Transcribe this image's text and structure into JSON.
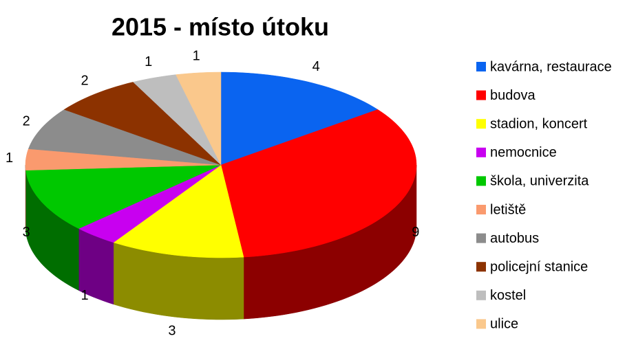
{
  "chart_data": {
    "type": "pie3d",
    "title": "2015 - místo útoku",
    "categories": [
      "kavárna, restaurace",
      "budova",
      "stadion, koncert",
      "nemocnice",
      "škola, univerzita",
      "letiště",
      "autobus",
      "policejní stanice",
      "kostel",
      "ulice"
    ],
    "values": [
      4,
      9,
      3,
      1,
      3,
      1,
      2,
      2,
      1,
      1
    ],
    "colors": [
      "#0a64f0",
      "#ff0000",
      "#ffff00",
      "#c800f0",
      "#00c800",
      "#fa9a6e",
      "#8c8c8c",
      "#8c3200",
      "#bebebe",
      "#fac88c"
    ],
    "legend": "right"
  }
}
